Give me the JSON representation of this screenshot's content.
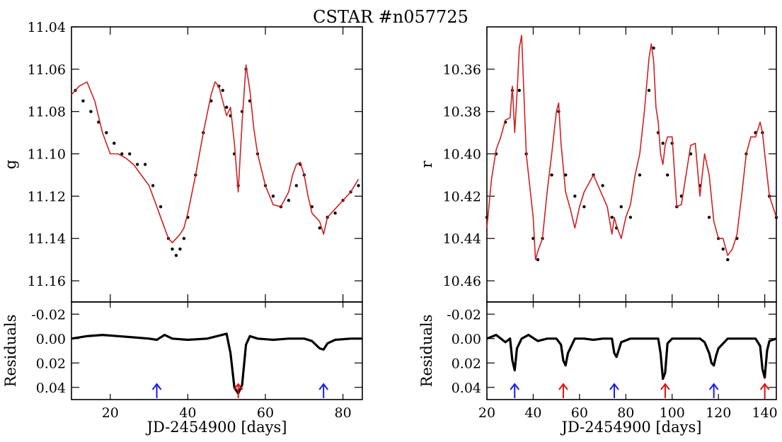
{
  "title": "CSTAR #n057725",
  "chart_data": [
    {
      "type": "scatter",
      "panel": "left-top",
      "ylabel": "g",
      "xlim": [
        10,
        85
      ],
      "ylim": [
        11.04,
        11.17
      ],
      "y_inverted": true,
      "x_ticks": [
        20,
        40,
        60,
        80
      ],
      "y_ticks": [
        11.04,
        11.06,
        11.08,
        11.1,
        11.12,
        11.14,
        11.16
      ],
      "y_tick_labels": [
        "11.04",
        "11.06",
        "11.08",
        "11.10",
        "11.12",
        "11.14",
        "11.16"
      ],
      "series": [
        {
          "kind": "points",
          "color": "#000000",
          "x": [
            11,
            13,
            15,
            17,
            19,
            21,
            23,
            25,
            27,
            29,
            31,
            33,
            35,
            36,
            37,
            38,
            39,
            40,
            42,
            44,
            46,
            48,
            49,
            50,
            51,
            52,
            53,
            54,
            55,
            56,
            58,
            60,
            62,
            64,
            66,
            68,
            69,
            70,
            72,
            74,
            76,
            78,
            80,
            82,
            84
          ],
          "y": [
            11.07,
            11.075,
            11.08,
            11.085,
            11.09,
            11.095,
            11.1,
            11.1,
            11.105,
            11.105,
            11.115,
            11.125,
            11.14,
            11.145,
            11.148,
            11.145,
            11.14,
            11.13,
            11.11,
            11.09,
            11.075,
            11.068,
            11.07,
            11.078,
            11.082,
            11.1,
            11.115,
            11.08,
            11.06,
            11.075,
            11.1,
            11.115,
            11.12,
            11.125,
            11.122,
            11.115,
            11.105,
            11.11,
            11.125,
            11.135,
            11.13,
            11.128,
            11.122,
            11.118,
            11.115
          ]
        },
        {
          "kind": "model",
          "color": "#cc2222",
          "x": [
            10,
            12,
            14,
            16,
            18,
            20,
            22,
            24,
            26,
            28,
            30,
            32,
            34,
            35,
            36,
            37,
            38,
            39,
            40,
            42,
            44,
            46,
            47,
            48,
            49,
            50,
            51,
            52,
            53,
            54,
            55,
            56,
            57,
            58,
            60,
            62,
            64,
            66,
            67,
            68,
            69,
            70,
            71,
            72,
            74,
            75,
            76,
            78,
            80,
            82,
            84
          ],
          "y": [
            11.072,
            11.068,
            11.066,
            11.075,
            11.09,
            11.1,
            11.1,
            11.102,
            11.105,
            11.11,
            11.115,
            11.125,
            11.135,
            11.14,
            11.142,
            11.14,
            11.138,
            11.135,
            11.128,
            11.11,
            11.09,
            11.072,
            11.066,
            11.068,
            11.075,
            11.082,
            11.078,
            11.095,
            11.118,
            11.085,
            11.058,
            11.07,
            11.088,
            11.1,
            11.115,
            11.124,
            11.125,
            11.118,
            11.11,
            11.105,
            11.104,
            11.11,
            11.12,
            11.128,
            11.132,
            11.138,
            11.13,
            11.126,
            11.122,
            11.118,
            11.112
          ]
        }
      ]
    },
    {
      "type": "line",
      "panel": "left-bottom",
      "xlabel": "JD-2454900 [days]",
      "ylabel": "Residuals",
      "xlim": [
        10,
        85
      ],
      "ylim": [
        -0.03,
        0.05
      ],
      "y_inverted": true,
      "x_ticks": [
        20,
        40,
        60,
        80
      ],
      "y_ticks": [
        -0.02,
        0.0,
        0.02,
        0.04
      ],
      "y_tick_labels": [
        "-0.02",
        "0.00",
        "0.02",
        "0.04"
      ],
      "series": [
        {
          "kind": "residuals",
          "color": "#000000",
          "x": [
            10,
            14,
            18,
            22,
            26,
            30,
            32,
            34,
            36,
            40,
            45,
            50,
            51,
            52,
            53,
            54,
            55,
            56,
            58,
            62,
            66,
            70,
            72,
            74,
            75,
            76,
            78,
            82,
            85
          ],
          "y": [
            0.0,
            -0.002,
            -0.003,
            -0.002,
            -0.001,
            0.0,
            0.001,
            -0.003,
            0.0,
            0.001,
            0.0,
            -0.004,
            0.012,
            0.04,
            0.045,
            0.038,
            0.005,
            -0.002,
            0.0,
            0.001,
            0.0,
            0.0,
            0.002,
            0.008,
            0.009,
            0.004,
            0.001,
            0.0,
            0.0
          ]
        }
      ],
      "markers": [
        {
          "x": 32,
          "color": "#1a1aee"
        },
        {
          "x": 53,
          "color": "#dd1111"
        },
        {
          "x": 75,
          "color": "#1a1aee"
        }
      ]
    },
    {
      "type": "scatter",
      "panel": "right-top",
      "ylabel": "r",
      "xlim": [
        20,
        145
      ],
      "ylim": [
        10.34,
        10.47
      ],
      "y_inverted": true,
      "x_ticks": [
        20,
        40,
        60,
        80,
        100,
        120,
        140
      ],
      "y_ticks": [
        10.36,
        10.38,
        10.4,
        10.42,
        10.44,
        10.46
      ],
      "y_tick_labels": [
        "10.36",
        "10.38",
        "10.40",
        "10.42",
        "10.44",
        "10.46"
      ],
      "series": [
        {
          "kind": "points",
          "color": "#000000",
          "x": [
            20,
            24,
            28,
            31,
            34,
            37,
            40,
            42,
            44,
            48,
            51,
            54,
            58,
            62,
            66,
            70,
            74,
            76,
            78,
            82,
            86,
            90,
            92,
            94,
            96,
            98,
            100,
            102,
            104,
            108,
            112,
            116,
            120,
            122,
            124,
            128,
            132,
            136,
            139,
            142,
            145
          ],
          "y": [
            10.43,
            10.4,
            10.385,
            10.37,
            10.37,
            10.4,
            10.44,
            10.45,
            10.44,
            10.41,
            10.38,
            10.41,
            10.42,
            10.425,
            10.41,
            10.415,
            10.43,
            10.435,
            10.425,
            10.43,
            10.41,
            10.37,
            10.35,
            10.39,
            10.395,
            10.41,
            10.395,
            10.425,
            10.42,
            10.4,
            10.415,
            10.43,
            10.44,
            10.445,
            10.45,
            10.44,
            10.4,
            10.39,
            10.39,
            10.42,
            10.43
          ]
        },
        {
          "kind": "model",
          "color": "#cc2222",
          "x": [
            20,
            22,
            24,
            26,
            28,
            30,
            31,
            32,
            33,
            34,
            35,
            37,
            40,
            41,
            42,
            44,
            46,
            48,
            50,
            51,
            52,
            54,
            56,
            58,
            60,
            62,
            64,
            66,
            68,
            70,
            72,
            74,
            75,
            76,
            78,
            80,
            82,
            84,
            86,
            88,
            90,
            91,
            92,
            93,
            94,
            95,
            96,
            97,
            98,
            100,
            102,
            104,
            106,
            108,
            110,
            112,
            114,
            116,
            118,
            120,
            122,
            124,
            126,
            128,
            130,
            132,
            134,
            136,
            138,
            139,
            140,
            142,
            145
          ],
          "y": [
            10.435,
            10.412,
            10.398,
            10.392,
            10.384,
            10.383,
            10.368,
            10.39,
            10.372,
            10.35,
            10.344,
            10.4,
            10.43,
            10.45,
            10.446,
            10.44,
            10.418,
            10.4,
            10.38,
            10.376,
            10.395,
            10.418,
            10.426,
            10.435,
            10.425,
            10.418,
            10.414,
            10.41,
            10.415,
            10.42,
            10.425,
            10.438,
            10.43,
            10.434,
            10.44,
            10.43,
            10.424,
            10.41,
            10.4,
            10.38,
            10.355,
            10.348,
            10.356,
            10.378,
            10.385,
            10.4,
            10.405,
            10.396,
            10.392,
            10.392,
            10.425,
            10.424,
            10.41,
            10.396,
            10.395,
            10.42,
            10.4,
            10.41,
            10.432,
            10.44,
            10.44,
            10.448,
            10.445,
            10.438,
            10.42,
            10.4,
            10.392,
            10.392,
            10.385,
            10.39,
            10.4,
            10.42,
            10.43
          ]
        }
      ]
    },
    {
      "type": "line",
      "panel": "right-bottom",
      "xlabel": "JD-2454900 [days]",
      "ylabel": "Residuals",
      "xlim": [
        20,
        145
      ],
      "ylim": [
        -0.03,
        0.05
      ],
      "y_inverted": true,
      "x_ticks": [
        20,
        40,
        60,
        80,
        100,
        120,
        140
      ],
      "y_ticks": [
        -0.02,
        0.0,
        0.02,
        0.04
      ],
      "y_tick_labels": [
        "-0.02",
        "0.00",
        "0.02",
        "0.04"
      ],
      "series": [
        {
          "kind": "residuals",
          "color": "#000000",
          "x": [
            20,
            24,
            28,
            30,
            31,
            32,
            33,
            35,
            38,
            42,
            46,
            50,
            52,
            53,
            54,
            55,
            58,
            62,
            66,
            70,
            74,
            75,
            76,
            78,
            82,
            86,
            90,
            94,
            95,
            96,
            97,
            98,
            100,
            104,
            108,
            112,
            114,
            116,
            117,
            118,
            119,
            120,
            124,
            128,
            132,
            136,
            138,
            139,
            140,
            141,
            142,
            145
          ],
          "y": [
            0.0,
            -0.003,
            0.003,
            0.0,
            0.018,
            0.026,
            0.008,
            0.0,
            -0.003,
            0.002,
            0.0,
            0.0,
            0.005,
            0.018,
            0.022,
            0.012,
            0.0,
            0.0,
            0.001,
            0.0,
            0.0,
            0.012,
            0.015,
            0.003,
            0.0,
            0.0,
            0.0,
            0.0,
            0.012,
            0.033,
            0.028,
            0.004,
            0.0,
            0.0,
            0.0,
            0.0,
            0.003,
            0.012,
            0.02,
            0.022,
            0.014,
            0.008,
            0.0,
            0.0,
            0.0,
            0.0,
            0.006,
            0.025,
            0.032,
            0.01,
            0.002,
            0.0
          ]
        }
      ],
      "markers": [
        {
          "x": 32,
          "color": "#1a1aee"
        },
        {
          "x": 53,
          "color": "#dd1111"
        },
        {
          "x": 75,
          "color": "#1a1aee"
        },
        {
          "x": 97,
          "color": "#dd1111"
        },
        {
          "x": 118,
          "color": "#1a1aee"
        },
        {
          "x": 140,
          "color": "#dd1111"
        }
      ]
    }
  ]
}
